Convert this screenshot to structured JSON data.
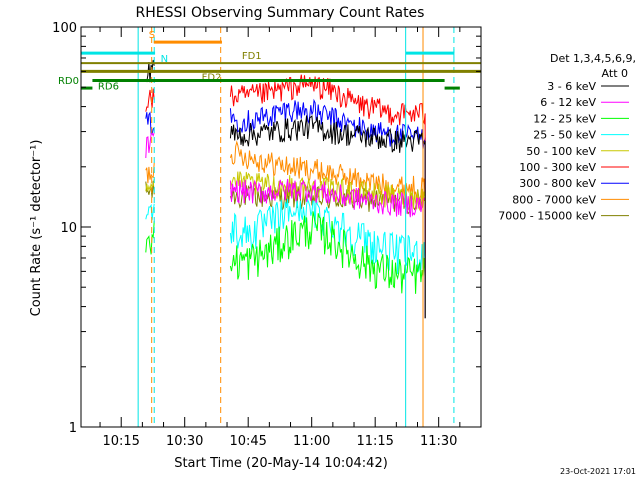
{
  "chart_data": {
    "type": "line",
    "title": "RHESSI Observing Summary Count Rates",
    "xlabel": "Start Time (20-May-14 10:04:42)",
    "ylabel": "Count Rate (s⁻¹ detector⁻¹)",
    "yscale": "log",
    "ylim": [
      1,
      100
    ],
    "y_ticks": [
      {
        "value": 1,
        "label": "1"
      },
      {
        "value": 10,
        "label": "10"
      },
      {
        "value": 100,
        "label": "100"
      }
    ],
    "xlim_min": [
      5.5,
      100
    ],
    "x_ticks": [
      {
        "min": 15,
        "label": "10:15"
      },
      {
        "min": 30,
        "label": "10:30"
      },
      {
        "min": 45,
        "label": "10:45"
      },
      {
        "min": 60,
        "label": "11:00"
      },
      {
        "min": 75,
        "label": "11:15"
      },
      {
        "min": 90,
        "label": "11:30"
      }
    ],
    "grid": false,
    "legend_placement": "right",
    "legend_header": [
      "Det 1,3,4,5,6,9,",
      "Att 0"
    ],
    "footer_date": "23-Oct-2021 17:01",
    "segments": [
      [
        20.8,
        23.0
      ],
      [
        40.8,
        86.8
      ]
    ],
    "vlines": [
      {
        "x": 19.0,
        "color": "#00e5e5",
        "dash": false
      },
      {
        "x": 22.8,
        "color": "#00e5e5",
        "dash": true
      },
      {
        "x": 22.2,
        "color": "#ff8c00",
        "dash": true
      },
      {
        "x": 38.5,
        "color": "#ff8c00",
        "dash": true
      },
      {
        "x": 82.2,
        "color": "#00e5e5",
        "dash": false
      },
      {
        "x": 86.3,
        "color": "#ff8c00",
        "dash": false
      },
      {
        "x": 93.6,
        "color": "#00e5e5",
        "dash": true
      }
    ],
    "flag_bars": [
      {
        "label": "S",
        "label_x": 21.5,
        "x0": 22.7,
        "x1": 38.8,
        "y": 84,
        "color": "#ff8c00",
        "width": 3
      },
      {
        "label": "N",
        "label_x": 24.3,
        "x0": 5.5,
        "x1": 23.0,
        "y": 74,
        "color": "#00e5e5",
        "width": 3
      },
      {
        "label": "",
        "label_x": 0,
        "x0": 82.2,
        "x1": 93.6,
        "y": 74,
        "color": "#00e5e5",
        "width": 3
      },
      {
        "label": "FD1",
        "label_x": 43.5,
        "x0": 5.5,
        "x1": 100,
        "y": 66,
        "color": "#808000",
        "width": 2
      },
      {
        "label": "FD2",
        "label_x": 34.0,
        "x0": 5.5,
        "x1": 100,
        "y": 60,
        "color": "#808000",
        "width": 3
      },
      {
        "label": "RD0",
        "label_x": 0,
        "x0": 5.5,
        "x1": 8.2,
        "y": 49.5,
        "color": "#008000",
        "width": 3
      },
      {
        "label": "",
        "label_x": 0,
        "x0": 91.4,
        "x1": 95.0,
        "y": 49.5,
        "color": "#008000",
        "width": 3
      },
      {
        "label": "RD6",
        "label_x": 9.5,
        "x0": 8.2,
        "x1": 91.4,
        "y": 54,
        "color": "#008000",
        "width": 3
      }
    ],
    "series": [
      {
        "name": "3 - 6 keV",
        "color": "#000000",
        "points": [
          [
            20.8,
            55
          ],
          [
            23.0,
            70
          ],
          [
            41.0,
            29
          ],
          [
            45.0,
            29
          ],
          [
            50.0,
            30
          ],
          [
            55.0,
            31
          ],
          [
            60.0,
            32
          ],
          [
            65.0,
            30
          ],
          [
            70.0,
            29
          ],
          [
            75.0,
            28
          ],
          [
            80.0,
            27
          ],
          [
            86.7,
            27
          ]
        ]
      },
      {
        "name": "6 - 12 keV",
        "color": "#ff00ff",
        "points": [
          [
            20.8,
            25
          ],
          [
            23.0,
            27
          ],
          [
            41.0,
            15.5
          ],
          [
            45.0,
            15
          ],
          [
            50.0,
            15
          ],
          [
            55.0,
            15.5
          ],
          [
            60.0,
            15.5
          ],
          [
            65.0,
            14.5
          ],
          [
            70.0,
            14
          ],
          [
            75.0,
            13.5
          ],
          [
            80.0,
            13
          ],
          [
            86.7,
            13
          ]
        ]
      },
      {
        "name": "12 - 25 keV",
        "color": "#00ff00",
        "points": [
          [
            20.8,
            8.5
          ],
          [
            23.0,
            9
          ],
          [
            41.0,
            6.8
          ],
          [
            45.0,
            6.8
          ],
          [
            50.0,
            7.6
          ],
          [
            55.0,
            9.0
          ],
          [
            60.0,
            10.0
          ],
          [
            65.0,
            8.8
          ],
          [
            70.0,
            7.2
          ],
          [
            75.0,
            6.3
          ],
          [
            80.0,
            5.8
          ],
          [
            86.7,
            5.8
          ]
        ]
      },
      {
        "name": "25 - 50 keV",
        "color": "#00ffff",
        "points": [
          [
            20.8,
            12
          ],
          [
            23.0,
            12
          ],
          [
            41.0,
            10
          ],
          [
            45.0,
            9.3
          ],
          [
            50.0,
            10.5
          ],
          [
            55.0,
            12.0
          ],
          [
            60.0,
            12.2
          ],
          [
            65.0,
            10.8
          ],
          [
            70.0,
            9.2
          ],
          [
            75.0,
            8.2
          ],
          [
            80.0,
            7.5
          ],
          [
            86.7,
            7.4
          ]
        ]
      },
      {
        "name": "50 - 100 keV",
        "color": "#c8c800",
        "points": [
          [
            20.8,
            17
          ],
          [
            23.0,
            17
          ],
          [
            41.0,
            17
          ],
          [
            45.0,
            16.5
          ],
          [
            50.0,
            16.2
          ],
          [
            55.0,
            16.0
          ],
          [
            60.0,
            15.8
          ],
          [
            65.0,
            15.5
          ],
          [
            70.0,
            15.0
          ],
          [
            75.0,
            14.7
          ],
          [
            80.0,
            14.2
          ],
          [
            86.7,
            14.0
          ]
        ]
      },
      {
        "name": "100 - 300 keV",
        "color": "#ff0000",
        "points": [
          [
            20.8,
            43
          ],
          [
            23.0,
            45
          ],
          [
            41.0,
            45
          ],
          [
            45.0,
            45
          ],
          [
            50.0,
            47
          ],
          [
            55.0,
            50
          ],
          [
            60.0,
            52
          ],
          [
            65.0,
            48
          ],
          [
            70.0,
            42
          ],
          [
            75.0,
            39
          ],
          [
            80.0,
            37
          ],
          [
            86.7,
            37
          ]
        ]
      },
      {
        "name": "300 - 800 keV",
        "color": "#0000ff",
        "points": [
          [
            20.8,
            33
          ],
          [
            23.0,
            33
          ],
          [
            41.0,
            35
          ],
          [
            45.0,
            34
          ],
          [
            50.0,
            36
          ],
          [
            55.0,
            39
          ],
          [
            60.0,
            38
          ],
          [
            65.0,
            35
          ],
          [
            70.0,
            32
          ],
          [
            75.0,
            30
          ],
          [
            80.0,
            29
          ],
          [
            86.7,
            28
          ]
        ]
      },
      {
        "name": "800 - 7000 keV",
        "color": "#ff8c00",
        "points": [
          [
            20.8,
            18
          ],
          [
            23.0,
            20
          ],
          [
            41.0,
            24
          ],
          [
            45.0,
            22.5
          ],
          [
            50.0,
            21
          ],
          [
            55.0,
            20
          ],
          [
            60.0,
            19.5
          ],
          [
            65.0,
            18.5
          ],
          [
            70.0,
            17.5
          ],
          [
            75.0,
            16.5
          ],
          [
            80.0,
            16.0
          ],
          [
            86.7,
            15.8
          ]
        ]
      },
      {
        "name": "7000 - 15000 keV",
        "color": "#808000",
        "points": [
          [
            20.8,
            15
          ],
          [
            23.0,
            15
          ],
          [
            41.0,
            14.5
          ],
          [
            45.0,
            14.3
          ],
          [
            50.0,
            14.2
          ],
          [
            55.0,
            14.1
          ],
          [
            60.0,
            14.0
          ],
          [
            65.0,
            13.9
          ],
          [
            70.0,
            13.8
          ],
          [
            75.0,
            13.7
          ],
          [
            80.0,
            13.6
          ],
          [
            86.7,
            13.5
          ]
        ]
      }
    ]
  }
}
